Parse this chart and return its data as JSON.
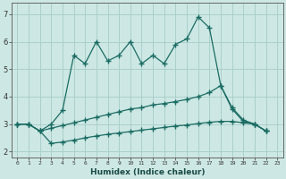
{
  "xlabel": "Humidex (Indice chaleur)",
  "background_color": "#cde8e4",
  "grid_color": "#aacfcb",
  "line_color": "#1a6b63",
  "xlim": [
    -0.5,
    23.5
  ],
  "ylim": [
    1.8,
    7.4
  ],
  "xticks": [
    0,
    1,
    2,
    3,
    4,
    5,
    6,
    7,
    8,
    9,
    10,
    11,
    12,
    13,
    14,
    15,
    16,
    17,
    18,
    19,
    20,
    21,
    22,
    23
  ],
  "yticks": [
    2,
    3,
    4,
    5,
    6
  ],
  "x_values": [
    0,
    1,
    2,
    3,
    4,
    5,
    6,
    7,
    8,
    9,
    10,
    11,
    12,
    13,
    14,
    15,
    16,
    17,
    18,
    19,
    20,
    21,
    22
  ],
  "line1_y": [
    3.0,
    3.0,
    2.75,
    3.0,
    3.5,
    5.5,
    5.2,
    6.0,
    5.3,
    5.5,
    6.0,
    5.2,
    5.5,
    5.2,
    5.9,
    6.1,
    6.9,
    6.5,
    4.4,
    3.6,
    3.15,
    3.0,
    2.75
  ],
  "line2_y": [
    3.0,
    3.0,
    2.75,
    2.85,
    2.95,
    3.05,
    3.15,
    3.25,
    3.35,
    3.45,
    3.55,
    3.6,
    3.7,
    3.75,
    3.82,
    3.9,
    4.0,
    4.15,
    4.4,
    3.55,
    3.1,
    3.0,
    2.75
  ],
  "line3_y": [
    3.0,
    3.0,
    2.75,
    2.3,
    2.35,
    2.42,
    2.5,
    2.57,
    2.63,
    2.68,
    2.73,
    2.78,
    2.83,
    2.88,
    2.93,
    2.97,
    3.02,
    3.07,
    3.1,
    3.1,
    3.05,
    3.0,
    2.75
  ]
}
